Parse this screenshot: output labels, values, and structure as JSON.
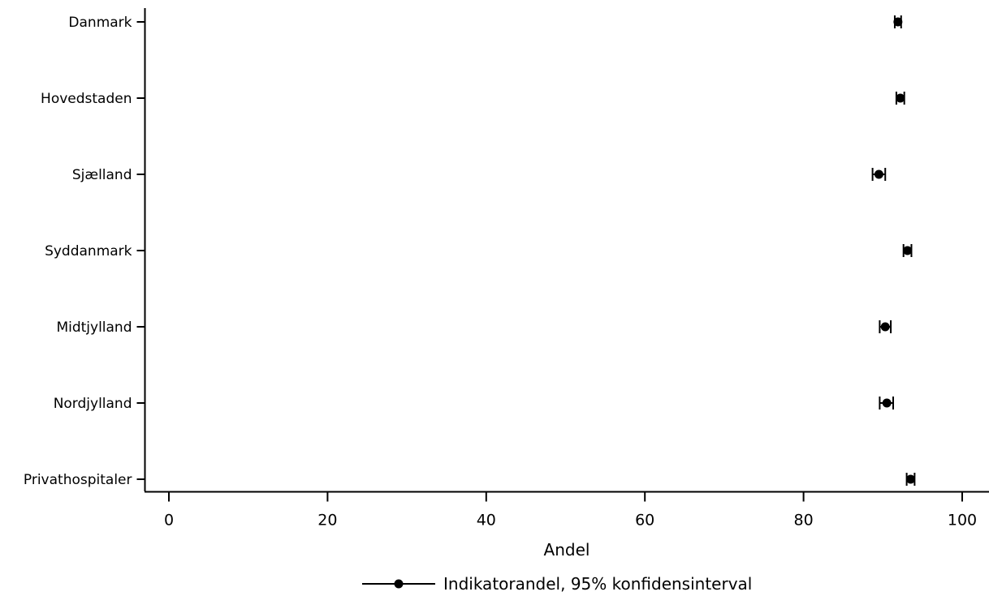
{
  "chart_data": {
    "type": "scatter",
    "orientation": "horizontal",
    "title": "",
    "xlabel": "Andel",
    "ylabel": "",
    "xlim": [
      0,
      100
    ],
    "xticks": [
      0,
      20,
      40,
      60,
      80,
      100
    ],
    "grid": false,
    "legend_position": "bottom-center",
    "categories": [
      "Danmark",
      "Hovedstaden",
      "Sjælland",
      "Syddanmark",
      "Midtjylland",
      "Nordjylland",
      "Privathospitaler"
    ],
    "series": [
      {
        "name": "Indikatorandel, 95% konfidensinterval",
        "values": [
          91.9,
          92.2,
          89.5,
          93.1,
          90.3,
          90.5,
          93.5
        ],
        "ci_low": [
          91.5,
          91.7,
          88.7,
          92.6,
          89.6,
          89.6,
          93.0
        ],
        "ci_high": [
          92.3,
          92.7,
          90.3,
          93.6,
          91.0,
          91.3,
          94.0
        ],
        "color": "#000000"
      }
    ]
  }
}
